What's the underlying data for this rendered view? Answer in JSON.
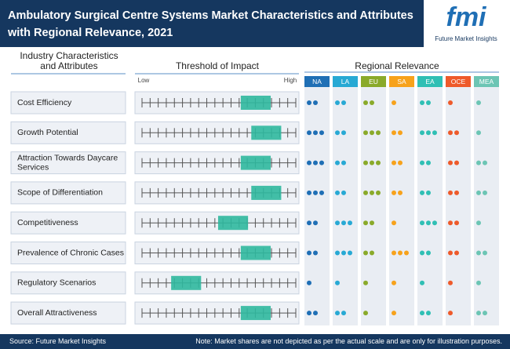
{
  "header": {
    "title": [
      "Ambulatory Surgical Centre Systems Market Characteristics and Attributes",
      "with Regional Relevance, 2021"
    ],
    "logo": "fmi",
    "logo_caption": "Future Market Insights"
  },
  "columns": {
    "attributes": [
      "Industry Characteristics",
      "and Attributes"
    ],
    "threshold": "Threshold of Impact",
    "low": "Low",
    "high": "High",
    "regional": "Regional Relevance"
  },
  "scale_ticks": 20,
  "regions": [
    {
      "name": "NA",
      "color": "#1f6fb5"
    },
    {
      "name": "LA",
      "color": "#27a9d4"
    },
    {
      "name": "EU",
      "color": "#8aaa2a"
    },
    {
      "name": "SA",
      "color": "#f7a21b"
    },
    {
      "name": "EA",
      "color": "#2fbfb4"
    },
    {
      "name": "OCE",
      "color": "#ee5a2a"
    },
    {
      "name": "MEA",
      "color": "#6cc5b4"
    }
  ],
  "rows": [
    {
      "label": [
        "Cost Efficiency"
      ],
      "impact": [
        12.2,
        15.9
      ],
      "relevance": [
        2,
        2,
        2,
        1,
        2,
        1,
        1
      ]
    },
    {
      "label": [
        "Growth Potential"
      ],
      "impact": [
        13.5,
        17.2
      ],
      "relevance": [
        3,
        2,
        3,
        2,
        3,
        2,
        1
      ]
    },
    {
      "label": [
        "Attraction Towards Daycare",
        "Services"
      ],
      "impact": [
        12.2,
        15.9
      ],
      "relevance": [
        3,
        2,
        3,
        2,
        2,
        2,
        2
      ]
    },
    {
      "label": [
        "Scope of Differentiation"
      ],
      "impact": [
        13.5,
        17.2
      ],
      "relevance": [
        3,
        2,
        3,
        2,
        2,
        2,
        2
      ]
    },
    {
      "label": [
        "Competitiveness"
      ],
      "impact": [
        9.4,
        13.1
      ],
      "relevance": [
        2,
        3,
        2,
        1,
        3,
        2,
        1
      ]
    },
    {
      "label": [
        "Prevalence of Chronic Cases"
      ],
      "impact": [
        12.2,
        15.9
      ],
      "relevance": [
        2,
        3,
        2,
        3,
        2,
        2,
        2
      ]
    },
    {
      "label": [
        "Regulatory Scenarios"
      ],
      "impact": [
        3.6,
        7.3
      ],
      "relevance": [
        1,
        1,
        1,
        1,
        1,
        1,
        1
      ]
    },
    {
      "label": [
        "Overall Attractiveness"
      ],
      "impact": [
        12.2,
        15.9
      ],
      "relevance": [
        2,
        2,
        1,
        1,
        2,
        1,
        2
      ]
    }
  ],
  "footer": {
    "source": "Source: Future Market Insights",
    "note": "Note: Market shares are not depicted as per the actual scale and are only for illustration purposes."
  }
}
